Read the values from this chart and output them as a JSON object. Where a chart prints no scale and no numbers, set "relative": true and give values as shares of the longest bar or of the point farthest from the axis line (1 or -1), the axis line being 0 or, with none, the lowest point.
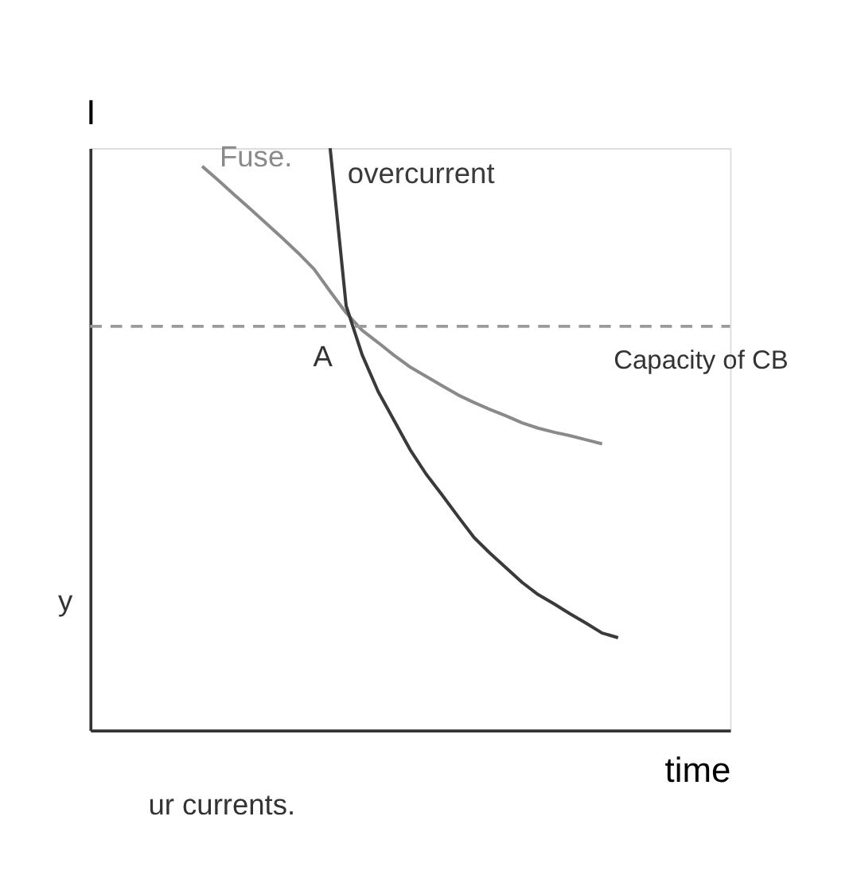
{
  "chart_data": {
    "type": "line",
    "relative": true,
    "xlabel": "time",
    "ylabel": "I",
    "marker": "none",
    "line_style": "solid",
    "categories": [
      null,
      null,
      null,
      null,
      null,
      null,
      null,
      null,
      null,
      null,
      null,
      null,
      null,
      null,
      null,
      null,
      null,
      null,
      null,
      null,
      null,
      null,
      null,
      null,
      null,
      null,
      null,
      null,
      null,
      null,
      null,
      null,
      null,
      null,
      null,
      null,
      null,
      null,
      null,
      null,
      null
    ],
    "series": [
      {
        "name": "Fuse.",
        "color": "#8a8a8a",
        "values": [
          null,
          null,
          null,
          null,
          null,
          null,
          null,
          0.969,
          0.945,
          0.92,
          0.896,
          0.871,
          0.846,
          0.82,
          0.792,
          0.754,
          0.717,
          0.687,
          0.666,
          0.644,
          0.624,
          0.608,
          0.592,
          0.576,
          0.563,
          0.551,
          0.54,
          0.528,
          0.519,
          0.512,
          0.506,
          0.499,
          0.492,
          null,
          null,
          null,
          null,
          null,
          null,
          null,
          null
        ]
      },
      {
        "name": "overcurrent",
        "color": "#3a3a3a",
        "values": [
          null,
          null,
          null,
          null,
          null,
          null,
          null,
          null,
          null,
          null,
          null,
          null,
          null,
          null,
          null,
          1.0,
          0.729,
          0.645,
          0.582,
          0.532,
          0.482,
          0.44,
          0.404,
          0.367,
          0.331,
          0.304,
          0.279,
          0.254,
          0.233,
          0.217,
          0.2,
          0.184,
          0.167,
          0.159,
          null,
          null,
          null,
          null,
          null,
          null,
          null
        ]
      }
    ],
    "ref_lines": [
      {
        "axis": "y",
        "value": 0.694,
        "label": "Capacity of CB",
        "color": "#9a9a9a",
        "line_style": "dashed"
      }
    ],
    "annotations": [
      "A",
      "y",
      "ur currents."
    ]
  }
}
